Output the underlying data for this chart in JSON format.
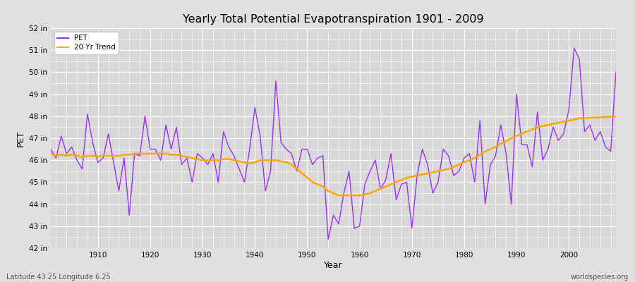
{
  "title": "Yearly Total Potential Evapotranspiration 1901 - 2009",
  "xlabel": "Year",
  "ylabel": "PET",
  "subtitle_left": "Latitude 43.25 Longitude 6.25",
  "subtitle_right": "worldspecies.org",
  "ylim": [
    42,
    52
  ],
  "xlim": [
    1901,
    2009
  ],
  "yticks": [
    42,
    43,
    44,
    45,
    46,
    47,
    48,
    49,
    50,
    51,
    52
  ],
  "ytick_labels": [
    "42 in",
    "43 in",
    "44 in",
    "45 in",
    "46 in",
    "47 in",
    "48 in",
    "49 in",
    "50 in",
    "51 in",
    "52 in"
  ],
  "xticks": [
    1910,
    1920,
    1930,
    1940,
    1950,
    1960,
    1970,
    1980,
    1990,
    2000
  ],
  "pet_color": "#9B30FF",
  "trend_color": "#FFA500",
  "fig_bg_color": "#E0E0E0",
  "plot_bg_color": "#D8D8D8",
  "years": [
    1901,
    1902,
    1903,
    1904,
    1905,
    1906,
    1907,
    1908,
    1909,
    1910,
    1911,
    1912,
    1913,
    1914,
    1915,
    1916,
    1917,
    1918,
    1919,
    1920,
    1921,
    1922,
    1923,
    1924,
    1925,
    1926,
    1927,
    1928,
    1929,
    1930,
    1931,
    1932,
    1933,
    1934,
    1935,
    1936,
    1937,
    1938,
    1939,
    1940,
    1941,
    1942,
    1943,
    1944,
    1945,
    1946,
    1947,
    1948,
    1949,
    1950,
    1951,
    1952,
    1953,
    1954,
    1955,
    1956,
    1957,
    1958,
    1959,
    1960,
    1961,
    1962,
    1963,
    1964,
    1965,
    1966,
    1967,
    1968,
    1969,
    1970,
    1971,
    1972,
    1973,
    1974,
    1975,
    1976,
    1977,
    1978,
    1979,
    1980,
    1981,
    1982,
    1983,
    1984,
    1985,
    1986,
    1987,
    1988,
    1989,
    1990,
    1991,
    1992,
    1993,
    1994,
    1995,
    1996,
    1997,
    1998,
    1999,
    2000,
    2001,
    2002,
    2003,
    2004,
    2005,
    2006,
    2007,
    2008,
    2009
  ],
  "pet_values": [
    46.5,
    46.1,
    47.1,
    46.3,
    46.6,
    46.0,
    45.6,
    48.1,
    46.8,
    45.9,
    46.1,
    47.2,
    45.9,
    44.6,
    46.1,
    43.5,
    46.3,
    46.2,
    48.0,
    46.5,
    46.5,
    46.0,
    47.6,
    46.5,
    47.5,
    45.8,
    46.1,
    45.0,
    46.3,
    46.1,
    45.8,
    46.3,
    45.0,
    47.3,
    46.6,
    46.2,
    45.6,
    45.0,
    46.5,
    48.4,
    47.1,
    44.6,
    45.5,
    49.6,
    46.8,
    46.5,
    46.3,
    45.5,
    46.5,
    46.5,
    45.8,
    46.1,
    46.2,
    42.4,
    43.5,
    43.1,
    44.5,
    45.5,
    42.9,
    43.0,
    44.9,
    45.5,
    46.0,
    44.7,
    45.1,
    46.3,
    44.2,
    44.9,
    45.0,
    42.9,
    45.3,
    46.5,
    45.8,
    44.5,
    45.0,
    46.5,
    46.2,
    45.3,
    45.5,
    46.1,
    46.3,
    45.0,
    47.8,
    44.0,
    45.8,
    46.2,
    47.6,
    46.3,
    44.0,
    49.0,
    46.7,
    46.7,
    45.7,
    48.2,
    46.0,
    46.5,
    47.5,
    46.9,
    47.2,
    48.3,
    51.1,
    50.6,
    47.3,
    47.6,
    46.9,
    47.3,
    46.6,
    46.4,
    50.0
  ],
  "trend_values": [
    46.3,
    46.2,
    46.25,
    46.2,
    46.25,
    46.2,
    46.15,
    46.2,
    46.2,
    46.15,
    46.2,
    46.2,
    46.2,
    46.2,
    46.25,
    46.25,
    46.3,
    46.3,
    46.3,
    46.3,
    46.3,
    46.3,
    46.3,
    46.25,
    46.25,
    46.2,
    46.15,
    46.1,
    46.05,
    46.0,
    46.0,
    46.0,
    46.0,
    46.05,
    46.05,
    46.0,
    45.95,
    45.9,
    45.85,
    45.9,
    46.0,
    46.0,
    46.0,
    46.0,
    45.95,
    45.9,
    45.8,
    45.6,
    45.4,
    45.2,
    45.0,
    44.9,
    44.8,
    44.6,
    44.5,
    44.4,
    44.4,
    44.4,
    44.4,
    44.4,
    44.45,
    44.5,
    44.6,
    44.7,
    44.8,
    44.9,
    45.0,
    45.1,
    45.2,
    45.25,
    45.3,
    45.35,
    45.4,
    45.45,
    45.5,
    45.55,
    45.6,
    45.7,
    45.8,
    45.9,
    46.0,
    46.1,
    46.25,
    46.4,
    46.5,
    46.6,
    46.75,
    46.85,
    47.0,
    47.1,
    47.2,
    47.3,
    47.4,
    47.5,
    47.55,
    47.6,
    47.65,
    47.7,
    47.75,
    47.8,
    47.85,
    47.9,
    47.92,
    47.93,
    47.94,
    47.95,
    47.96,
    47.97,
    47.98
  ]
}
